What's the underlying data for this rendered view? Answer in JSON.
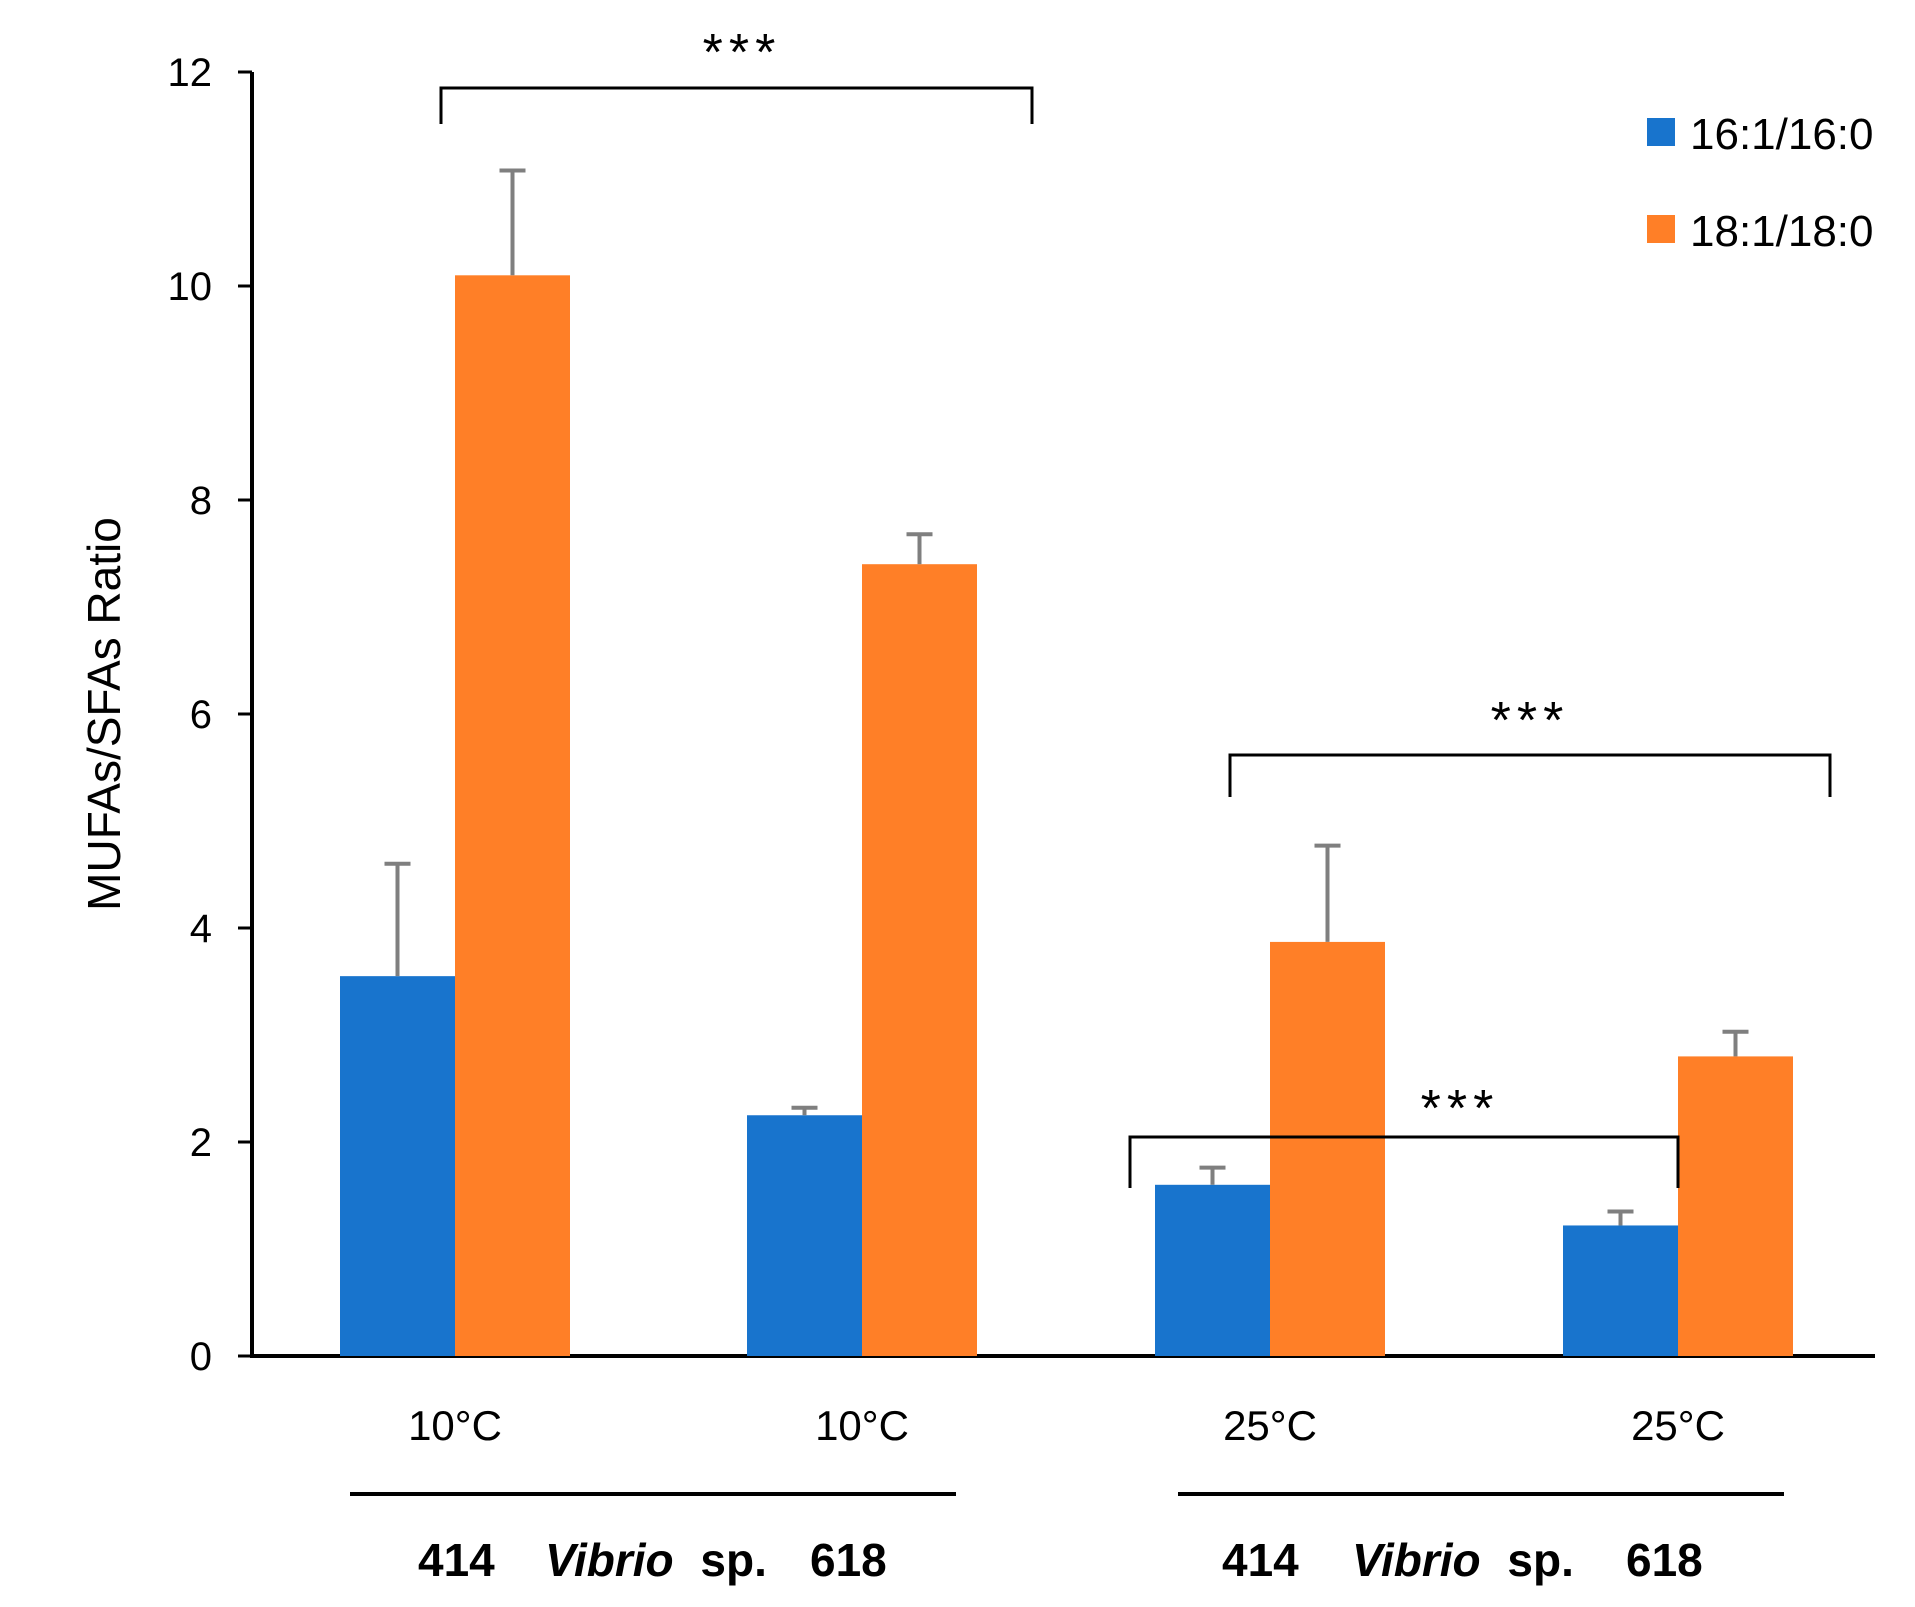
{
  "chart_data": {
    "type": "bar",
    "title": "",
    "xlabel": "",
    "ylabel": "MUFAs/SFAs Ratio",
    "ylim": [
      0,
      12
    ],
    "yticks": [
      "0",
      "2",
      "4",
      "6",
      "8",
      "10",
      "12"
    ],
    "categories": [
      "10°C",
      "10°C",
      "25°C",
      "25°C"
    ],
    "series": [
      {
        "name": "16:1/16:0",
        "color": "#1874CD",
        "values": [
          3.55,
          2.25,
          1.6,
          1.22
        ],
        "errors": [
          1.05,
          0.07,
          0.16,
          0.13
        ]
      },
      {
        "name": "18:1/18:0",
        "color": "#FF7F27",
        "values": [
          10.1,
          7.4,
          3.87,
          2.8
        ],
        "errors": [
          0.98,
          0.28,
          0.9,
          0.23
        ]
      }
    ],
    "groups": [
      {
        "strain_a": "414",
        "genus": "Vibrio",
        "sp": "sp.",
        "strain_b": "618"
      },
      {
        "strain_a": "414",
        "genus": "Vibrio",
        "sp": "sp.",
        "strain_b": "618"
      }
    ],
    "significance": [
      "***",
      "***",
      "***"
    ],
    "legend_position": "top-right"
  }
}
